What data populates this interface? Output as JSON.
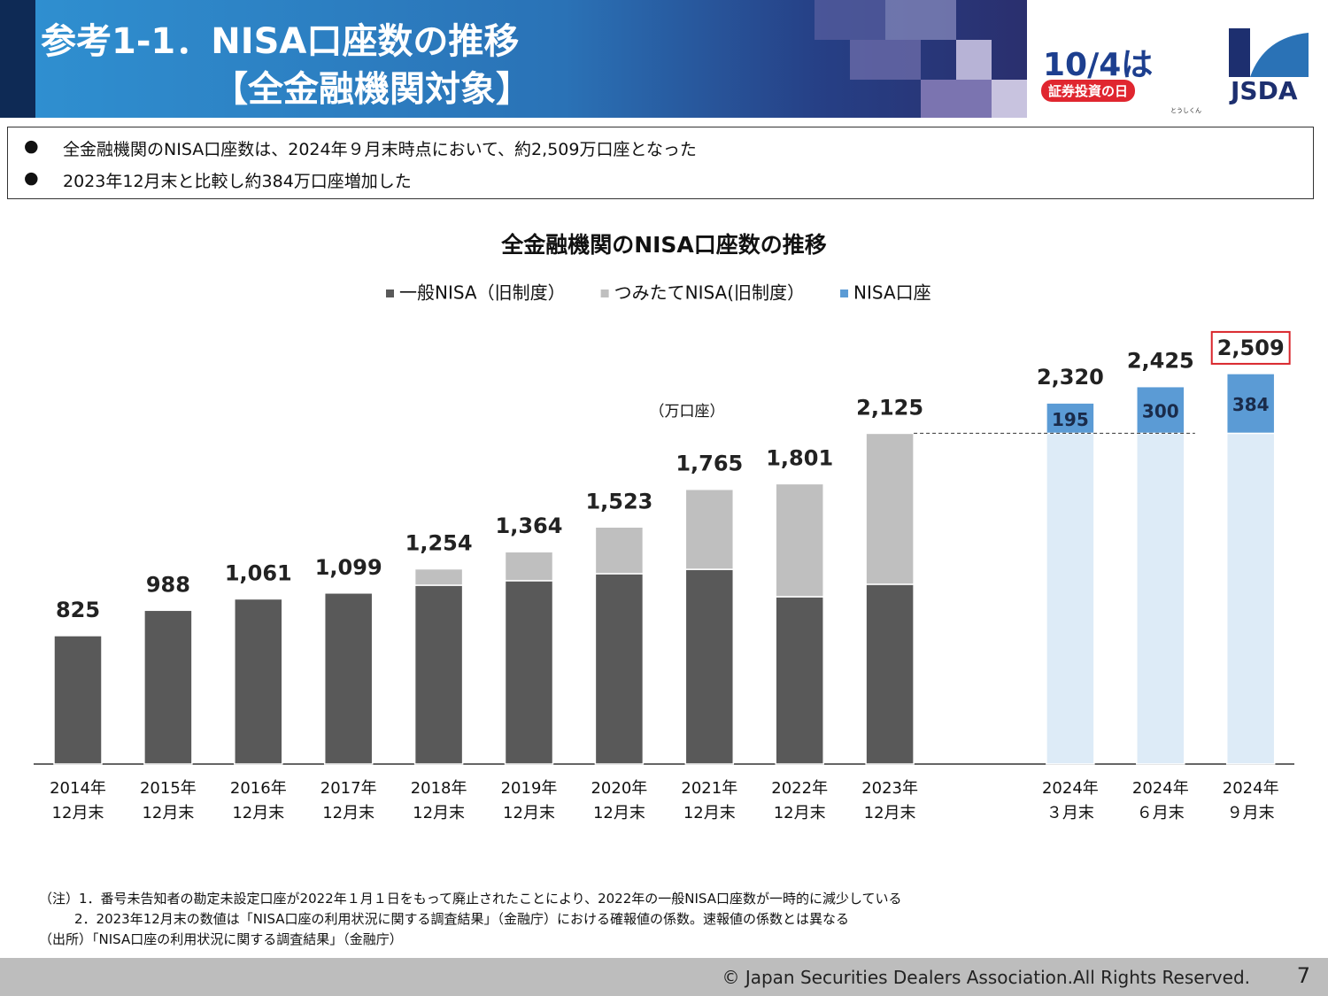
{
  "header": {
    "title_lines": [
      "参考1-1．NISA口座数の推移",
      "【全金融機関対象】"
    ],
    "logo": {
      "date": "10/4は",
      "caption": "証券投資の日",
      "mascot": "とうしくん",
      "org": "JSDA"
    }
  },
  "summary": {
    "bullets": [
      "全金融機関のNISA口座数は、2024年９月末時点において、約2,509万口座となった",
      "2023年12月末と比較し約384万口座増加した"
    ]
  },
  "chart_data": {
    "type": "stacked-bar",
    "title": "全金融機関のNISA口座数の推移",
    "unit": "（万口座）",
    "categories": [
      [
        "2014年",
        "12月末"
      ],
      [
        "2015年",
        "12月末"
      ],
      [
        "2016年",
        "12月末"
      ],
      [
        "2017年",
        "12月末"
      ],
      [
        "2018年",
        "12月末"
      ],
      [
        "2019年",
        "12月末"
      ],
      [
        "2020年",
        "12月末"
      ],
      [
        "2021年",
        "12月末"
      ],
      [
        "2022年",
        "12月末"
      ],
      [
        "2023年",
        "12月末"
      ],
      [
        "2024年",
        "３月末"
      ],
      [
        "2024年",
        "６月末"
      ],
      [
        "2024年",
        "９月末"
      ]
    ],
    "series": [
      {
        "name": "一般NISA（旧制度）",
        "color": "#595959",
        "values": [
          825,
          988,
          1061,
          1099,
          1149,
          1178,
          1223,
          1251,
          1075,
          1155,
          null,
          null,
          null
        ]
      },
      {
        "name": "つみたてNISA(旧制度）",
        "color": "#bfbfbf",
        "values": [
          null,
          null,
          null,
          null,
          105,
          186,
          300,
          514,
          726,
          970,
          null,
          null,
          null
        ]
      },
      {
        "color": "#ddebf7",
        "values": [
          null,
          null,
          null,
          null,
          null,
          null,
          null,
          null,
          null,
          null,
          2125,
          2125,
          2125
        ]
      },
      {
        "name": "NISA口座",
        "color": "#5b9bd5",
        "values": [
          null,
          null,
          null,
          null,
          null,
          null,
          null,
          null,
          null,
          null,
          195,
          300,
          384
        ]
      }
    ],
    "totals": {
      "values": [
        825,
        988,
        1061,
        1099,
        1254,
        1364,
        1523,
        1765,
        1801,
        2125,
        2320,
        2425,
        2509
      ],
      "value_labels": [
        "825",
        "988",
        "1,061",
        "1,099",
        "1,254",
        "1,364",
        "1,523",
        "1,765",
        "1,801",
        "2,125",
        "2,320",
        "2,425",
        "2,509"
      ]
    }
  },
  "notes": [
    "（注）1．番号未告知者の勘定未設定口座が2022年１月１日をもって廃止されたことにより、2022年の一般NISA口座数が一時的に減少している",
    "2．2023年12月末の数値は「NISA口座の利用状況に関する調査結果」（金融庁）における確報値の係数。速報値の係数とは異なる",
    "（出所）「NISA口座の利用状況に関する調査結果」（金融庁）"
  ],
  "footer": {
    "copyright": "© Japan Securities Dealers Association.All Rights Reserved.",
    "page": "7"
  }
}
